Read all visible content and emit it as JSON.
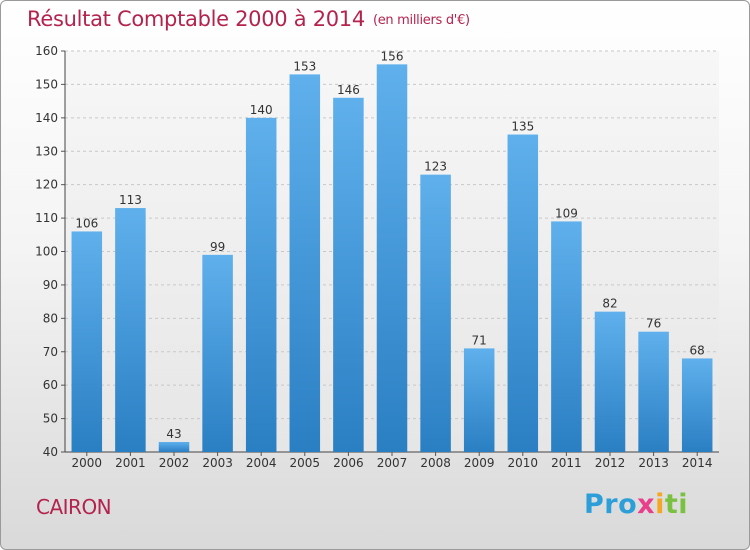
{
  "title": "Résultat Comptable 2000 à 2014",
  "subtitle": "(en milliers d'€)",
  "commune": "CAIRON",
  "logo": {
    "p1": "Pro",
    "p2": "x",
    "p3": "i",
    "p4": "ti"
  },
  "colors": {
    "bar_top": "#5fb0ec",
    "bar_bottom": "#2a7fc3",
    "title": "#b4234d"
  },
  "chart_data": {
    "type": "bar",
    "title": "Résultat Comptable 2000 à 2014",
    "subtitle": "(en milliers d'€)",
    "xlabel": "",
    "ylabel": "",
    "categories": [
      "2000",
      "2001",
      "2002",
      "2003",
      "2004",
      "2005",
      "2006",
      "2007",
      "2008",
      "2009",
      "2010",
      "2011",
      "2012",
      "2013",
      "2014"
    ],
    "values": [
      106,
      113,
      43,
      99,
      140,
      153,
      146,
      156,
      123,
      71,
      135,
      109,
      82,
      76,
      68
    ],
    "ylim": [
      40,
      160
    ],
    "yticks": [
      40,
      50,
      60,
      70,
      80,
      90,
      100,
      110,
      120,
      130,
      140,
      150,
      160
    ],
    "grid": true
  }
}
